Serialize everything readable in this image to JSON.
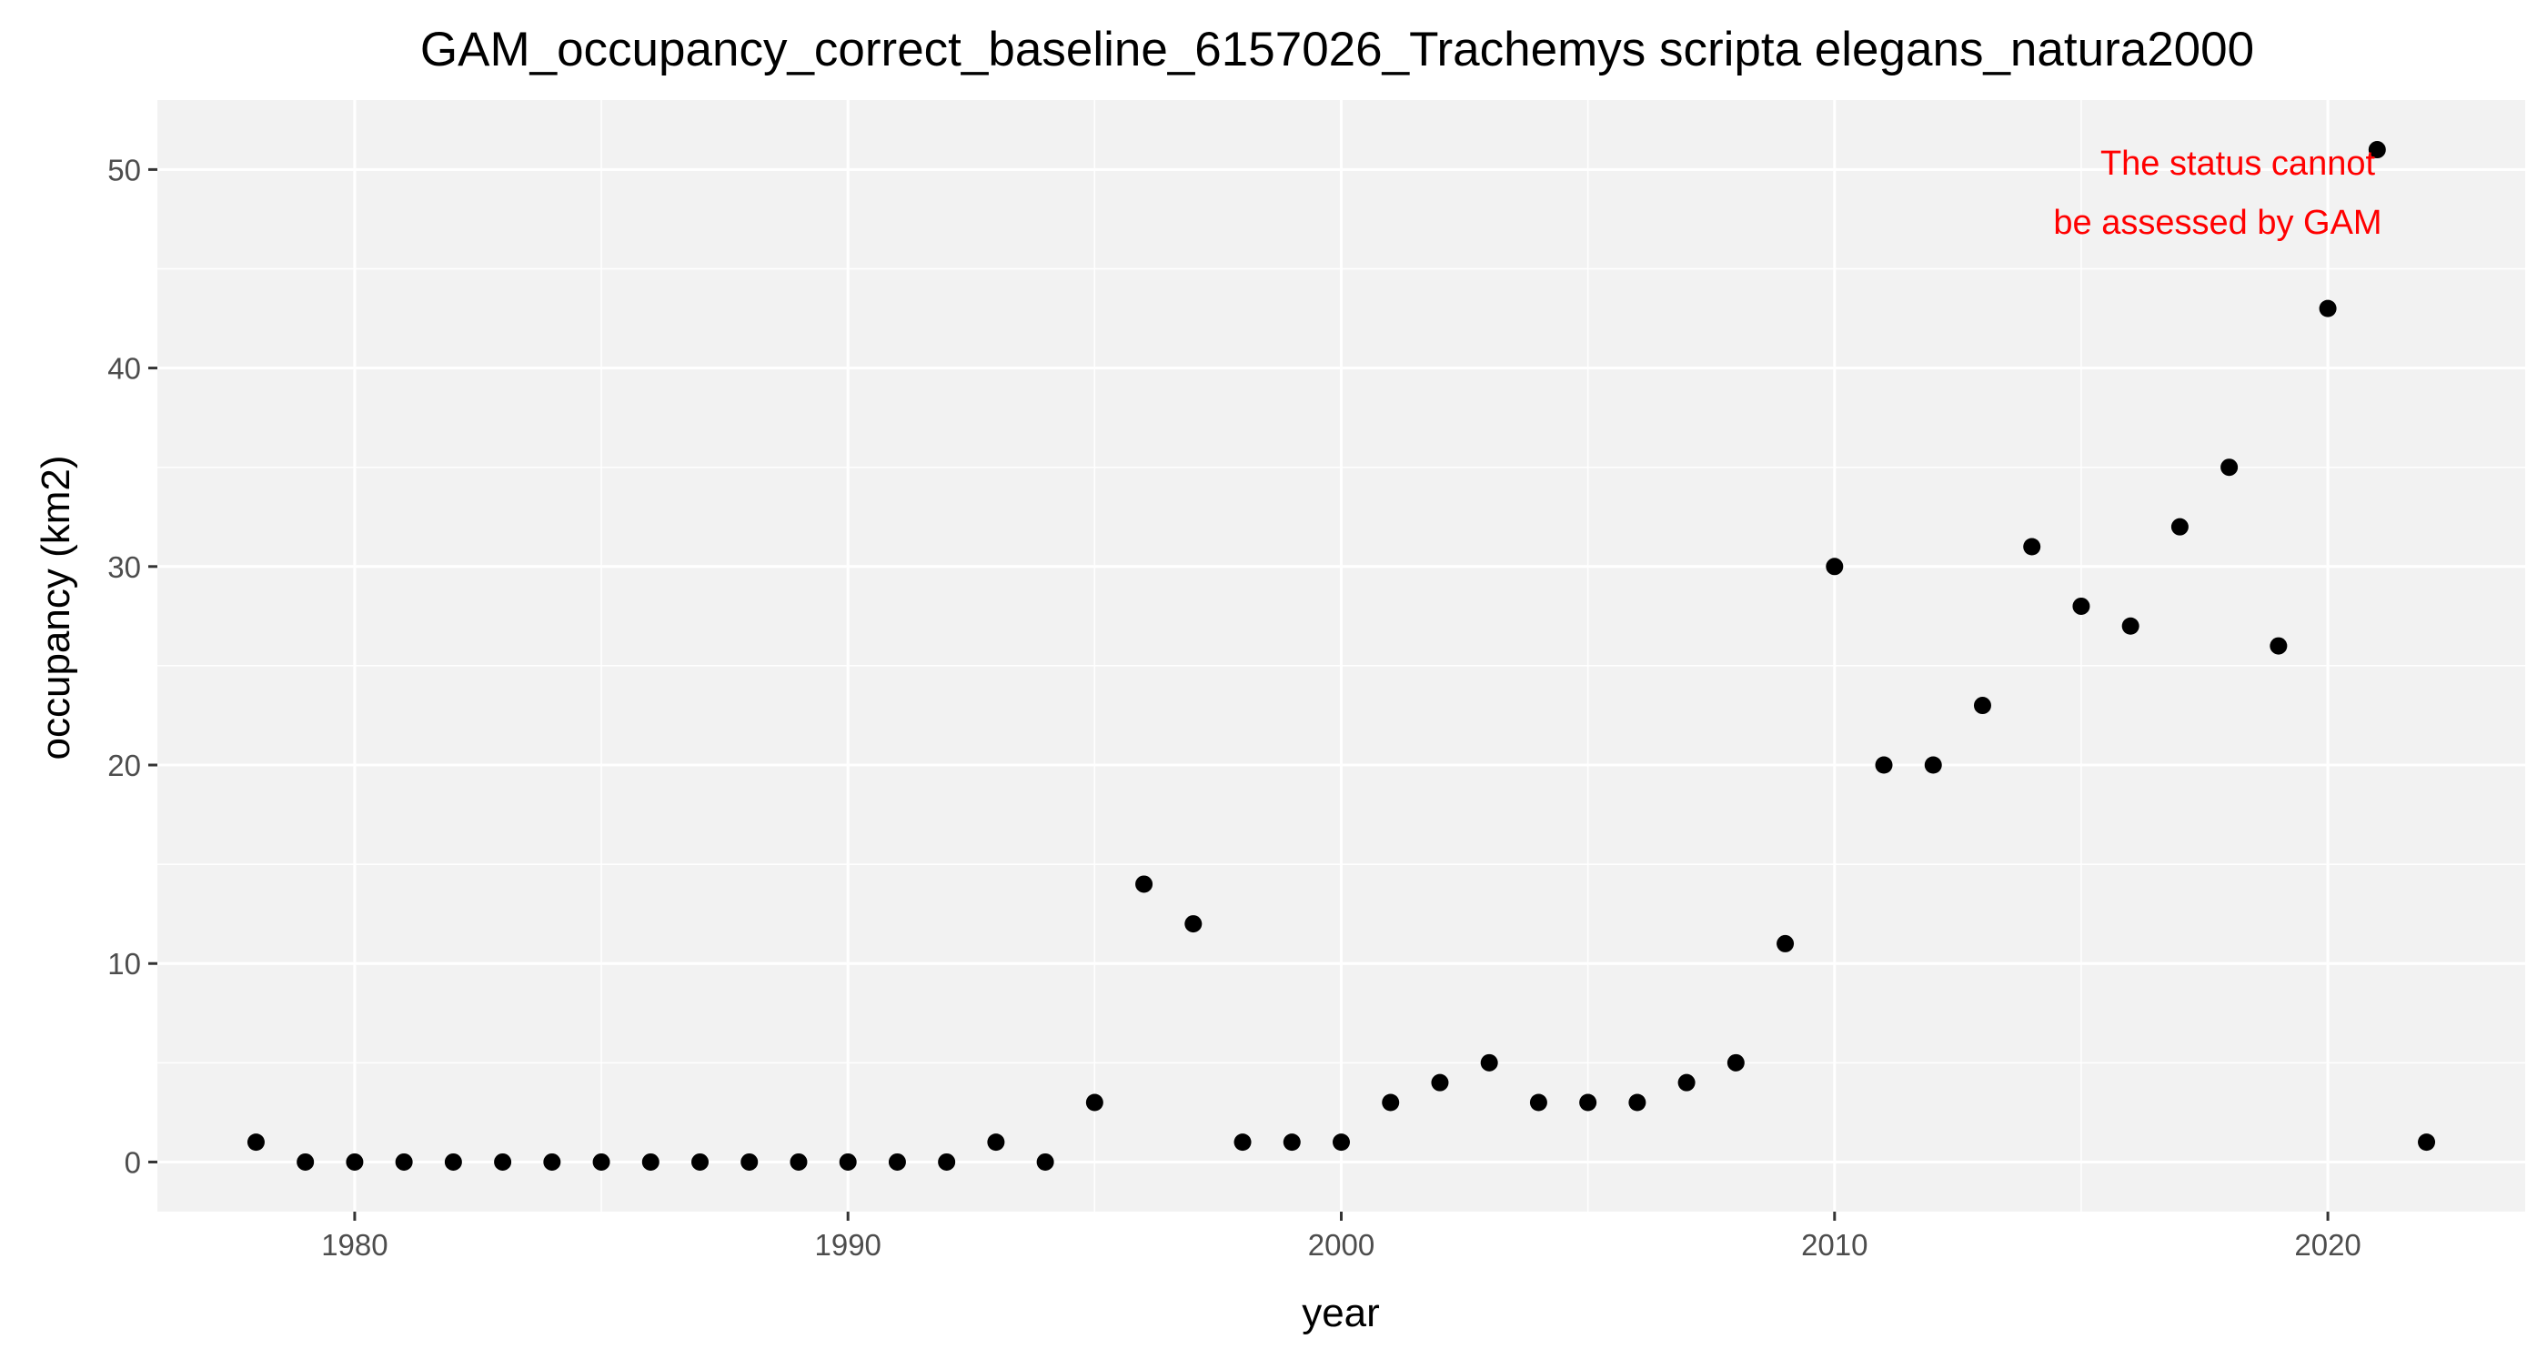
{
  "chart_data": {
    "type": "scatter",
    "title": "GAM_occupancy_correct_baseline_6157026_Trachemys scripta elegans_natura2000",
    "xlabel": "year",
    "ylabel": "occupancy (km2)",
    "xlim": [
      1976,
      2024
    ],
    "ylim": [
      -2.5,
      53.5
    ],
    "x_major_ticks": [
      1980,
      1990,
      2000,
      2010,
      2020
    ],
    "x_minor_ticks": [
      1975,
      1985,
      1995,
      2005,
      2015
    ],
    "y_major_ticks": [
      0,
      10,
      20,
      30,
      40,
      50
    ],
    "y_minor_ticks": [
      5,
      15,
      25,
      35,
      45
    ],
    "grid": true,
    "legend": "none",
    "annotation": [
      "The status cannot",
      "be assessed by GAM"
    ],
    "colors": {
      "panel": "#f2f2f2",
      "grid": "#ffffff",
      "point": "#000000",
      "annotation": "#ff0000"
    },
    "x": [
      1978,
      1979,
      1980,
      1981,
      1982,
      1983,
      1984,
      1985,
      1986,
      1987,
      1988,
      1989,
      1990,
      1991,
      1992,
      1993,
      1994,
      1995,
      1996,
      1997,
      1998,
      1999,
      2000,
      2001,
      2002,
      2003,
      2004,
      2005,
      2006,
      2007,
      2008,
      2009,
      2010,
      2011,
      2012,
      2013,
      2014,
      2015,
      2016,
      2017,
      2018,
      2019,
      2020,
      2021,
      2022
    ],
    "y": [
      1,
      0,
      0,
      0,
      0,
      0,
      0,
      0,
      0,
      0,
      0,
      0,
      0,
      0,
      0,
      1,
      0,
      3,
      14,
      12,
      1,
      1,
      1,
      3,
      4,
      5,
      3,
      3,
      3,
      4,
      5,
      11,
      30,
      20,
      20,
      23,
      31,
      28,
      27,
      32,
      35,
      26,
      43,
      51,
      1
    ]
  }
}
